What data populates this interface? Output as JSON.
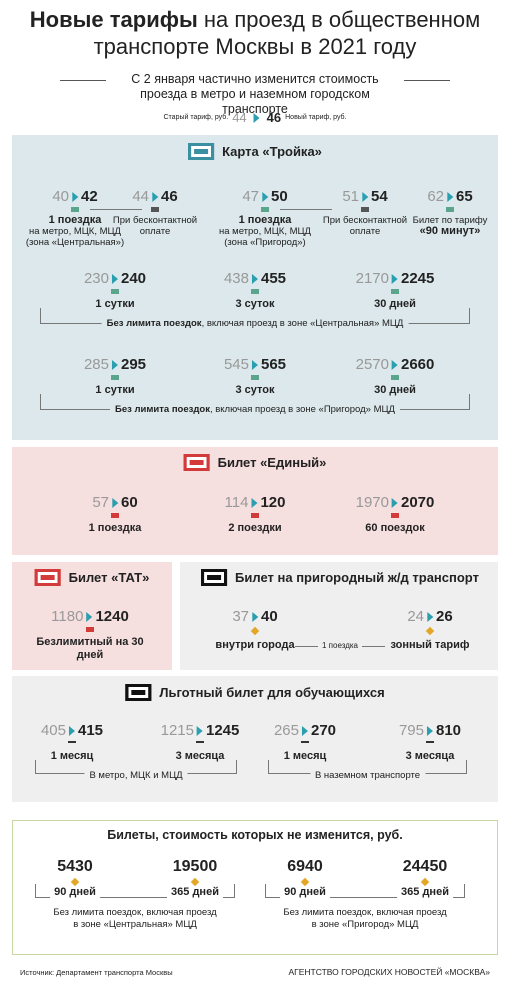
{
  "header": {
    "title_bold": "Новые тарифы",
    "title_rest": "на проезд в общественном транспорте Москвы в 2021 году",
    "subtitle": "С 2 января частично изменится стоимость проезда в метро и наземном городском транспорте"
  },
  "legend": {
    "old_label": "Старый тариф, руб.",
    "old": 44,
    "new": 46,
    "new_label": "Новый тариф, руб."
  },
  "troika": {
    "title": "Карта «Тройка»",
    "single": [
      {
        "old": 40,
        "new": 42,
        "lines": [
          {
            "text": "1 поездка",
            "bold": true
          },
          {
            "text": "на метро, МЦК, МЦД (зона «Центральная»)"
          }
        ]
      },
      {
        "old": 44,
        "new": 46,
        "lines": [
          {
            "text": "При бесконтактной оплате"
          }
        ]
      },
      {
        "old": 47,
        "new": 50,
        "lines": [
          {
            "text": "1 поездка",
            "bold": true
          },
          {
            "text": "на метро, МЦК, МЦД (зона «Пригород»)"
          }
        ]
      },
      {
        "old": 51,
        "new": 54,
        "lines": [
          {
            "text": "При бесконтактной оплате"
          }
        ]
      },
      {
        "old": 62,
        "new": 65,
        "lines": [
          {
            "text": "Билет по тарифу"
          },
          {
            "text": "«90 минут»",
            "bold": true
          }
        ]
      }
    ],
    "central": {
      "items": [
        {
          "old": 230,
          "new": 240,
          "label": "1 сутки"
        },
        {
          "old": 438,
          "new": 455,
          "label": "3 суток"
        },
        {
          "old": 2170,
          "new": 2245,
          "label": "30 дней"
        }
      ],
      "note_bold": "Без лимита поездок",
      "note": ", включая проезд в зоне «Центральная» МЦД"
    },
    "prigorod": {
      "items": [
        {
          "old": 285,
          "new": 295,
          "label": "1 сутки"
        },
        {
          "old": 545,
          "new": 565,
          "label": "3 суток"
        },
        {
          "old": 2570,
          "new": 2660,
          "label": "30 дней"
        }
      ],
      "note_bold": "Без лимита поездок",
      "note": ", включая проезд в зоне «Пригород» МЦД"
    }
  },
  "edinyi": {
    "title": "Билет «Единый»",
    "items": [
      {
        "old": 57,
        "new": 60,
        "label": "1 поездка"
      },
      {
        "old": 114,
        "new": 120,
        "label": "2 поездки"
      },
      {
        "old": 1970,
        "new": 2070,
        "label": "60 поездок"
      }
    ]
  },
  "tat": {
    "title": "Билет «ТАТ»",
    "old": 1180,
    "new": 1240,
    "label": "Безлимитный на 30 дней"
  },
  "suburban": {
    "title": "Билет на пригородный ж/д транспорт",
    "items": [
      {
        "old": 37,
        "new": 40,
        "label": "внутри города"
      },
      {
        "old": 24,
        "new": 26,
        "label": "зонный тариф"
      }
    ],
    "middle": "1 поездка"
  },
  "student": {
    "title": "Льготный билет для обучающихся",
    "groups": [
      {
        "items": [
          {
            "old": 405,
            "new": 415,
            "label": "1 месяц"
          },
          {
            "old": 1215,
            "new": 1245,
            "label": "3 месяца"
          }
        ],
        "note": "В метро, МЦК и МЦД"
      },
      {
        "items": [
          {
            "old": 265,
            "new": 270,
            "label": "1 месяц"
          },
          {
            "old": 795,
            "new": 810,
            "label": "3 месяца"
          }
        ],
        "note": "В наземном транспорте"
      }
    ]
  },
  "unchanged": {
    "title": "Билеты, стоимость которых не изменится, руб.",
    "groups": [
      {
        "items": [
          {
            "price": 5430,
            "label": "90 дней"
          },
          {
            "price": 19500,
            "label": "365 дней"
          }
        ],
        "note": "Без лимита поездок, включая проезд в зоне «Центральная» МЦД"
      },
      {
        "items": [
          {
            "price": 6940,
            "label": "90 дней"
          },
          {
            "price": 24450,
            "label": "365 дней"
          }
        ],
        "note": "Без лимита поездок, включая проезд в зоне «Пригород» МЦД"
      }
    ]
  },
  "footer": {
    "source": "Источник: Департамент транспорта Москвы",
    "agency": "АГЕНТСТВО ГОРОДСКИХ НОВОСТЕЙ «МОСКВА»"
  }
}
